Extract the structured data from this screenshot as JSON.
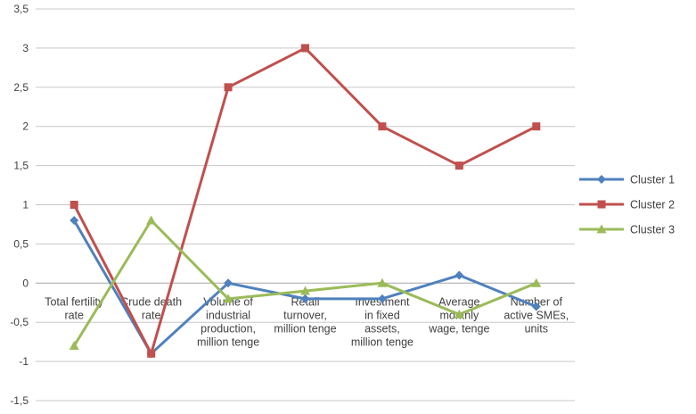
{
  "chart_data": {
    "type": "line",
    "categories": [
      [
        "Total fertility",
        "rate"
      ],
      [
        "Crude death",
        "rate"
      ],
      [
        "Volume of",
        "industrial",
        "production,",
        "million tenge"
      ],
      [
        "Retail",
        "turnover,",
        "million tenge"
      ],
      [
        "Investment",
        "in fixed",
        "assets,",
        "million tenge"
      ],
      [
        "Average",
        "monthly",
        "wage, tenge"
      ],
      [
        "Number of",
        "active SMEs,",
        "units"
      ]
    ],
    "series": [
      {
        "name": "Cluster 1",
        "color": "#4f81bd",
        "marker": "diamond",
        "values": [
          0.8,
          -0.9,
          0.0,
          -0.2,
          -0.2,
          0.1,
          -0.3
        ]
      },
      {
        "name": "Cluster 2",
        "color": "#c0504d",
        "marker": "square",
        "values": [
          1.0,
          -0.9,
          2.5,
          3.0,
          2.0,
          1.5,
          2.0
        ]
      },
      {
        "name": "Cluster 3",
        "color": "#9bbb59",
        "marker": "triangle",
        "values": [
          -0.8,
          0.8,
          -0.2,
          -0.1,
          0.0,
          -0.4,
          0.0
        ]
      }
    ],
    "ylim": [
      -1.5,
      3.5
    ],
    "yticks": [
      3.5,
      3,
      2.5,
      2,
      1.5,
      1,
      0.5,
      0,
      -0.5,
      -1,
      -1.5
    ],
    "ytick_labels": [
      "3,5",
      "3",
      "2,5",
      "2",
      "1,5",
      "1",
      "0,5",
      "0",
      "-0,5",
      "-1",
      "-1,5"
    ],
    "grid": true,
    "legend_position": "right",
    "title": "",
    "xlabel": "",
    "ylabel": ""
  }
}
